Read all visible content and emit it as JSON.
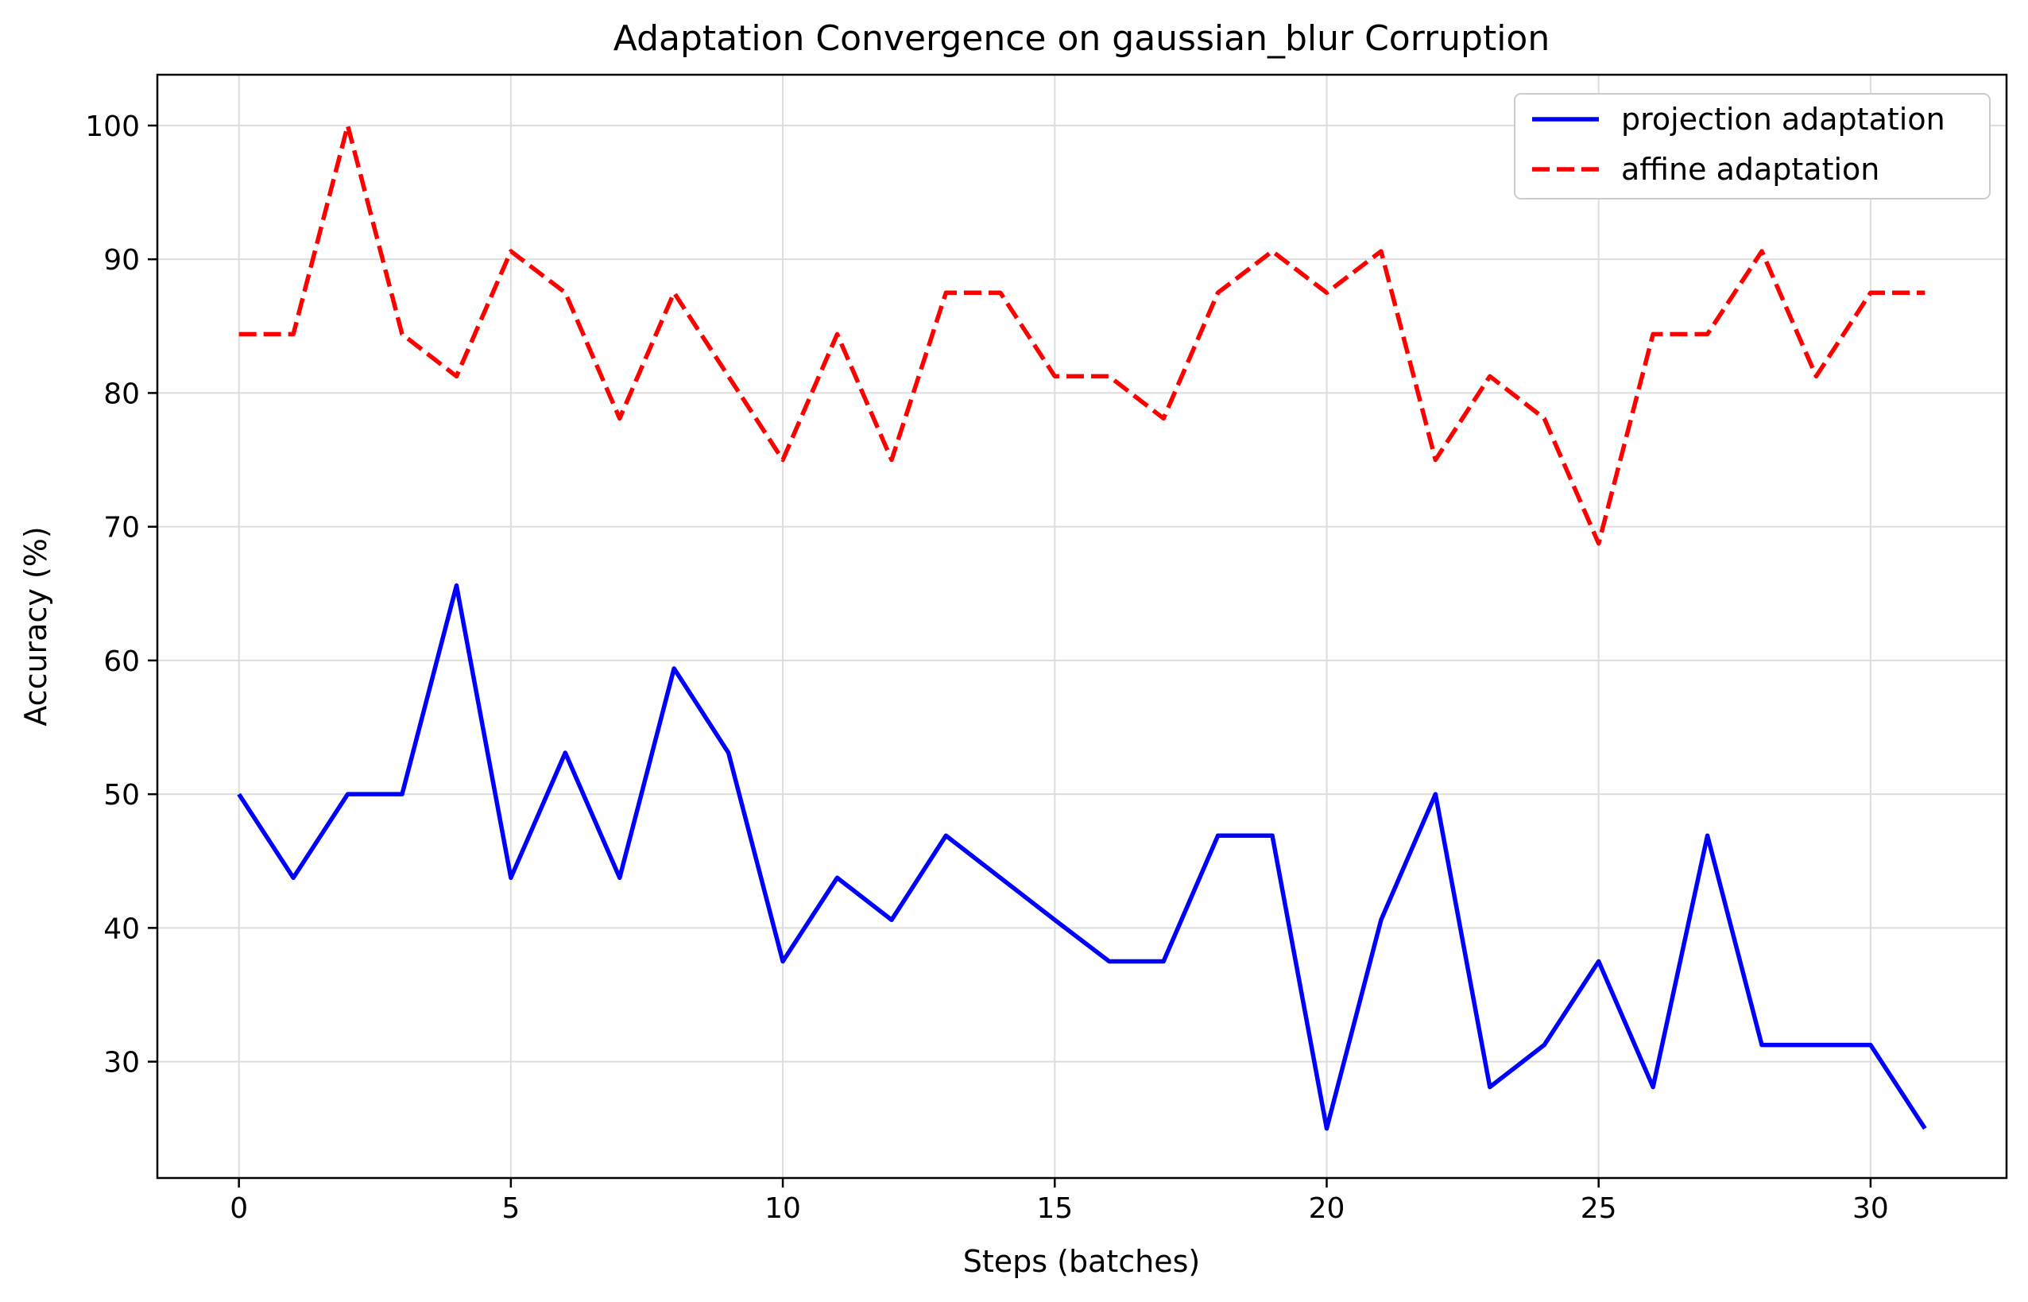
{
  "chart_data": {
    "type": "line",
    "title": "Adaptation Convergence on gaussian_blur Corruption",
    "xlabel": "Steps (batches)",
    "ylabel": "Accuracy (%)",
    "xlim": [
      -1.5,
      32.5
    ],
    "ylim": [
      21.3,
      103.8
    ],
    "xticks": [
      0,
      5,
      10,
      15,
      20,
      25,
      30
    ],
    "yticks": [
      30,
      40,
      50,
      60,
      70,
      80,
      90,
      100
    ],
    "grid": true,
    "legend_position": "top-right",
    "x": [
      0,
      1,
      2,
      3,
      4,
      5,
      6,
      7,
      8,
      9,
      10,
      11,
      12,
      13,
      14,
      15,
      16,
      17,
      18,
      19,
      20,
      21,
      22,
      23,
      24,
      25,
      26,
      27,
      28,
      29,
      30,
      31
    ],
    "series": [
      {
        "name": "projection adaptation",
        "color": "#0000ff",
        "style": "solid",
        "values": [
          50.0,
          43.75,
          50.0,
          50.0,
          65.6,
          43.75,
          53.1,
          43.75,
          59.4,
          53.1,
          37.5,
          43.75,
          40.6,
          46.9,
          43.75,
          40.6,
          37.5,
          37.5,
          46.9,
          46.9,
          25.0,
          40.6,
          50.0,
          28.1,
          31.25,
          37.5,
          28.1,
          46.9,
          31.25,
          31.25,
          31.25,
          25.0
        ]
      },
      {
        "name": "affine adaptation",
        "color": "#ff0000",
        "style": "dashed",
        "values": [
          84.4,
          84.4,
          100.0,
          84.4,
          81.25,
          90.6,
          87.5,
          78.1,
          87.5,
          81.25,
          75.0,
          84.4,
          75.0,
          87.5,
          87.5,
          81.25,
          81.25,
          78.1,
          87.5,
          90.6,
          87.5,
          90.6,
          75.0,
          81.25,
          78.1,
          68.75,
          84.4,
          84.4,
          90.6,
          81.25,
          87.5,
          87.5
        ]
      }
    ]
  }
}
